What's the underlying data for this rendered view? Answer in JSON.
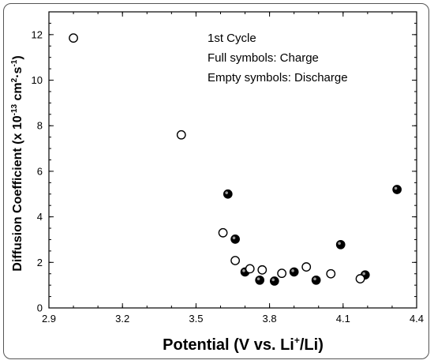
{
  "chart_data": {
    "type": "scatter",
    "xlabel_main": "Potential (V vs. Li",
    "xlabel_sup": "+",
    "xlabel_end": "/Li)",
    "ylabel_main": "Diffusion Coefficient (x 10",
    "ylabel_sup1": "-13",
    "ylabel_mid": " cm",
    "ylabel_sup2": "2",
    "ylabel_mid2": "·s",
    "ylabel_sup3": "-1",
    "ylabel_end": ")",
    "xlim": [
      2.9,
      4.4
    ],
    "ylim": [
      0,
      13
    ],
    "xticks": [
      "2.9",
      "3.2",
      "3.5",
      "3.8",
      "4.1",
      "4.4"
    ],
    "yticks": [
      "0",
      "2",
      "4",
      "6",
      "8",
      "10",
      "12"
    ],
    "annotations": [
      "1st Cycle",
      "Full symbols: Charge",
      "Empty symbols: Discharge"
    ],
    "series": [
      {
        "style": "filled",
        "points": [
          [
            3.63,
            5.0
          ],
          [
            3.66,
            3.02
          ],
          [
            3.7,
            1.58
          ],
          [
            3.76,
            1.22
          ],
          [
            3.82,
            1.18
          ],
          [
            3.9,
            1.58
          ],
          [
            3.99,
            1.22
          ],
          [
            4.09,
            2.78
          ],
          [
            4.19,
            1.45
          ],
          [
            4.32,
            5.2
          ]
        ]
      },
      {
        "style": "empty",
        "points": [
          [
            3.0,
            11.85
          ],
          [
            3.44,
            7.6
          ],
          [
            3.61,
            3.3
          ],
          [
            3.66,
            2.08
          ],
          [
            3.72,
            1.72
          ],
          [
            3.77,
            1.67
          ],
          [
            3.85,
            1.52
          ],
          [
            3.95,
            1.8
          ],
          [
            4.05,
            1.5
          ],
          [
            4.17,
            1.28
          ]
        ]
      }
    ]
  }
}
